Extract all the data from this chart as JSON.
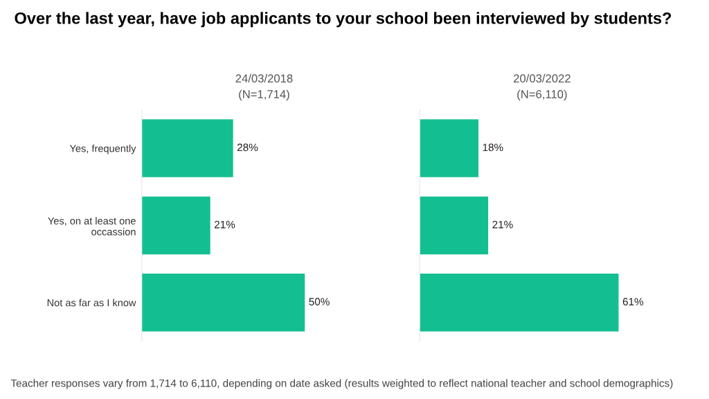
{
  "chart_data": [
    {
      "type": "bar",
      "orientation": "horizontal",
      "title": "Over the last year, have job applicants to your school been interviewed by students?",
      "subtitle": "24/03/2018\n(N=1,714)",
      "categories": [
        "Yes, frequently",
        "Yes, on at least one\noccassion",
        "Not as far as I know"
      ],
      "values": [
        28,
        21,
        50
      ],
      "value_labels": [
        "28%",
        "21%",
        "50%"
      ],
      "color": "#13bf90",
      "tick_labels": "y",
      "grid": false,
      "legend": false,
      "annotations": [
        "Teacher responses vary from 1,714 to 6,110, depending on date asked (results weighted to reflect national teacher and school demographics)"
      ]
    },
    {
      "type": "bar",
      "orientation": "horizontal",
      "subtitle": "20/03/2022\n(N=6,110)",
      "categories": [
        null,
        null,
        null
      ],
      "values": [
        18,
        21,
        61
      ],
      "value_labels": [
        "18%",
        "21%",
        "61%"
      ],
      "color": "#13bf90",
      "tick_labels": false,
      "grid": false,
      "legend": false
    }
  ]
}
